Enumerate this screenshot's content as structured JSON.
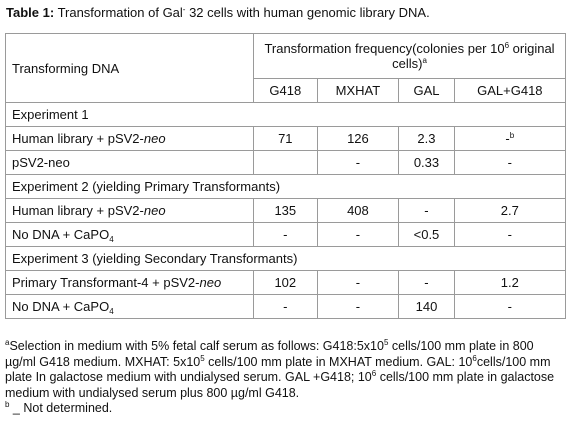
{
  "title": {
    "label": "Table 1:",
    "text": [
      "Transformation of Gal",
      "-",
      " 32 cells with human genomic library DNA."
    ]
  },
  "table": {
    "row_header": "Transforming DNA",
    "group_header": [
      "Transformation frequency(colonies per 10",
      "6",
      " original cells)",
      "a"
    ],
    "columns": [
      "G418",
      "MXHAT",
      "GAL",
      "GAL+G418"
    ],
    "rows": [
      {
        "section": "Experiment 1"
      },
      {
        "label": {
          "text": "Human library + pSV2-",
          "italic": "neo"
        },
        "values": [
          71,
          126,
          2.3,
          {
            "text": "-",
            "sup": "b"
          }
        ]
      },
      {
        "label": {
          "text": "pSV2-neo"
        },
        "values": [
          "",
          "-",
          0.33,
          "-"
        ]
      },
      {
        "section": "Experiment 2 (yielding Primary Transformants)"
      },
      {
        "label": {
          "text": "Human library + pSV2-",
          "italic": "neo"
        },
        "values": [
          135,
          408,
          "-",
          2.7
        ]
      },
      {
        "label": {
          "text": "No DNA + CaPO",
          "sub": "4"
        },
        "values": [
          "-",
          "-",
          "<0.5",
          "-"
        ]
      },
      {
        "section": "Experiment 3 (yielding Secondary Transformants)"
      },
      {
        "label": {
          "text": "Primary Transformant-4 + pSV2-",
          "italic": "neo"
        },
        "values": [
          102,
          "-",
          "-",
          1.2
        ]
      },
      {
        "label": {
          "text": "No DNA + CaPO",
          "sub": "4"
        },
        "values": [
          "-",
          "-",
          140,
          "-"
        ]
      }
    ]
  },
  "footnotes": [
    [
      "",
      "a",
      "Selection in medium with  5% fetal calf serum as follows: G418:5x10",
      "5",
      " cells/100 mm plate in 800 µg/ml G418 medium. MXHAT: 5x10",
      "5",
      " cells/100 mm plate in MXHAT medium. GAL: 10",
      "6",
      "cells/100 mm plate In galactose medium with undialysed serum. GAL +G418; 10",
      "6",
      " cells/100 mm plate in galactose medium with undialysed serum plus 800 µg/ml G418."
    ],
    [
      "",
      "b",
      " _ Not determined."
    ]
  ]
}
